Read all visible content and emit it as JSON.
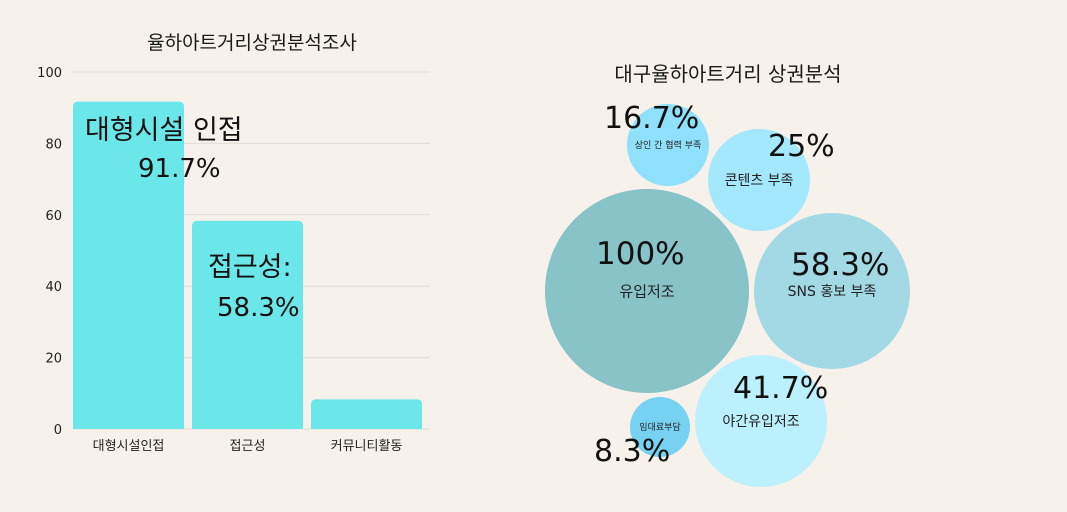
{
  "chart_data": [
    {
      "type": "bar",
      "title": "율하아트거리상권분석조사",
      "categories": [
        "대형시설인접",
        "접근성",
        "커뮤니티활동"
      ],
      "values": [
        91.7,
        58.3,
        8.3
      ],
      "ylim": [
        0,
        100
      ],
      "yticks": [
        "0",
        "20",
        "40",
        "60",
        "80",
        "100"
      ],
      "grid": true,
      "bar_color": "#6be6e9",
      "annotations": [
        {
          "category": "대형시설인접",
          "title": "대형시설 인접",
          "value_text": "91.7%"
        },
        {
          "category": "접근성",
          "title": "접근성:",
          "value_text": "58.3%"
        }
      ]
    },
    {
      "type": "bubble",
      "title": "대구율하아트거리 상권분석",
      "items": [
        {
          "label": "유입저조",
          "value": 100,
          "value_text": "100%",
          "color": "#88c3c8"
        },
        {
          "label": "SNS 홍보 부족",
          "value": 58.3,
          "value_text": "58.3%",
          "color": "#a3d9e4"
        },
        {
          "label": "야간유입저조",
          "value": 41.7,
          "value_text": "41.7%",
          "color": "#bdf0fd"
        },
        {
          "label": "콘텐츠 부족",
          "value": 25,
          "value_text": "25%",
          "color": "#a4e8fd"
        },
        {
          "label": "상인 간 협력 부족",
          "value": 16.7,
          "value_text": "16.7%",
          "color": "#8ee0fb"
        },
        {
          "label": "임대료부담",
          "value": 8.3,
          "value_text": "8.3%",
          "color": "#77d1f1"
        }
      ]
    }
  ]
}
